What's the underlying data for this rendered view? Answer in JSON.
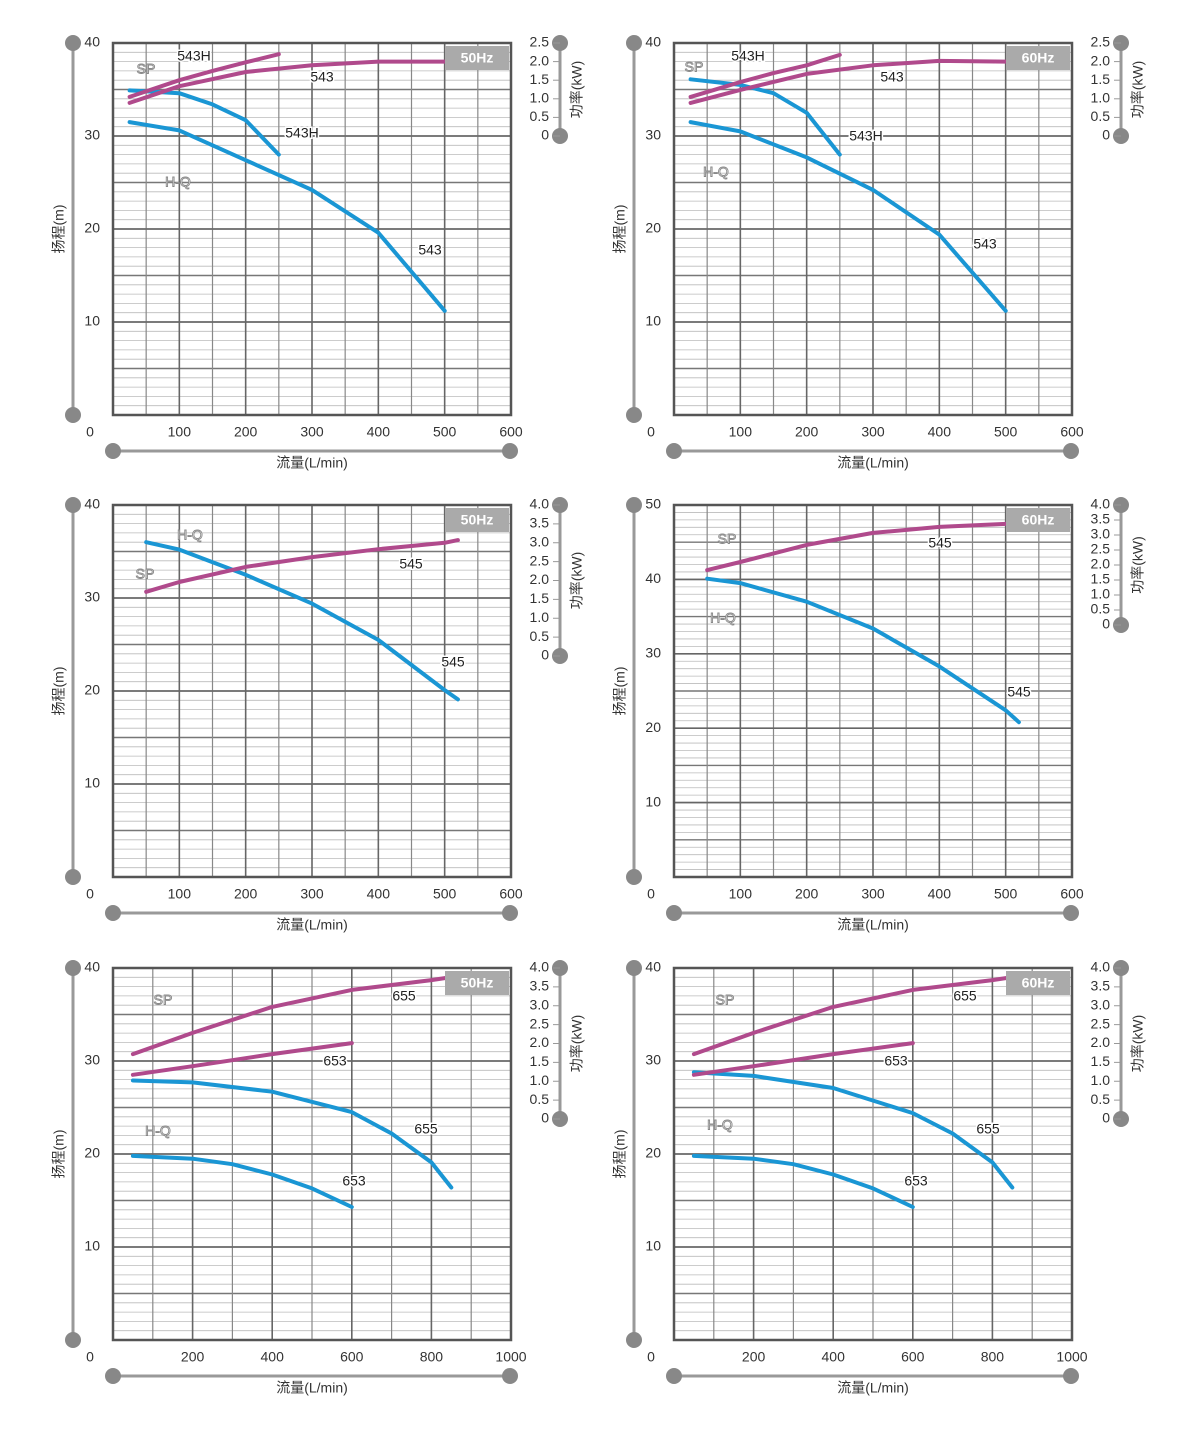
{
  "chart_data": [
    {
      "type": "line",
      "frequency": "50Hz",
      "xlabel": "流量(L/min)",
      "ylabel": "扬程(m)",
      "y2label": "功率(kW)",
      "head_label": "H-Q",
      "power_label": "SP",
      "xlim": [
        0,
        600
      ],
      "xticks": [
        0,
        100,
        200,
        300,
        400,
        500,
        600
      ],
      "ylim": [
        0,
        40
      ],
      "yticks": [
        10,
        20,
        30,
        40
      ],
      "y2lim": [
        0,
        2.5
      ],
      "y2ticks": [
        0,
        0.5,
        {
          "value": 1,
          "label": "1.0"
        },
        1.5,
        {
          "value": 2,
          "label": "2.0"
        },
        2.5
      ],
      "grid": true,
      "series": [
        {
          "name": "543H",
          "color": "#1a96d4",
          "x": [
            25,
            100,
            150,
            200,
            250
          ],
          "values": [
            34.9,
            34.6,
            33.4,
            31.7,
            28
          ]
        },
        {
          "name": "543",
          "color": "#1a96d4",
          "x": [
            25,
            100,
            200,
            300,
            400,
            500
          ],
          "values": [
            31.5,
            30.6,
            27.4,
            24.2,
            19.6,
            11.2
          ]
        },
        {
          "name": "543H",
          "color": "#b04a8c",
          "axis": "y2",
          "x": [
            25,
            100,
            150,
            200,
            250
          ],
          "values": [
            1.05,
            1.5,
            1.75,
            1.98,
            2.2
          ]
        },
        {
          "name": "543",
          "color": "#b04a8c",
          "axis": "y2",
          "x": [
            25,
            100,
            200,
            300,
            400,
            500
          ],
          "values": [
            0.89,
            1.34,
            1.72,
            1.9,
            2.0,
            2.0
          ]
        }
      ]
    },
    {
      "type": "line",
      "frequency": "60Hz",
      "xlabel": "流量(L/min)",
      "ylabel": "扬程(m)",
      "y2label": "功率(kW)",
      "head_label": "H-Q",
      "power_label": "SP",
      "xlim": [
        0,
        600
      ],
      "xticks": [
        0,
        100,
        200,
        300,
        400,
        500,
        600
      ],
      "ylim": [
        0,
        40
      ],
      "yticks": [
        10,
        20,
        30,
        40
      ],
      "y2lim": [
        0,
        2.5
      ],
      "y2ticks": [
        0,
        0.5,
        {
          "value": 1,
          "label": "1.0"
        },
        1.5,
        {
          "value": 2,
          "label": "2.0"
        },
        2.5
      ],
      "grid": true,
      "series": [
        {
          "name": "543H",
          "color": "#1a96d4",
          "x": [
            25,
            100,
            150,
            200,
            250
          ],
          "values": [
            36.1,
            35.5,
            34.6,
            32.5,
            28
          ]
        },
        {
          "name": "543",
          "color": "#1a96d4",
          "x": [
            25,
            100,
            200,
            300,
            400,
            500
          ],
          "values": [
            31.5,
            30.5,
            27.7,
            24.2,
            19.4,
            11.2
          ]
        },
        {
          "name": "543H",
          "color": "#b04a8c",
          "axis": "y2",
          "x": [
            25,
            100,
            150,
            200,
            250
          ],
          "values": [
            1.05,
            1.45,
            1.69,
            1.9,
            2.18
          ]
        },
        {
          "name": "543",
          "color": "#b04a8c",
          "axis": "y2",
          "x": [
            25,
            100,
            200,
            300,
            400,
            500
          ],
          "values": [
            0.89,
            1.24,
            1.67,
            1.9,
            2.02,
            2.0
          ]
        }
      ]
    },
    {
      "type": "line",
      "frequency": "50Hz",
      "xlabel": "流量(L/min)",
      "ylabel": "扬程(m)",
      "y2label": "功率(kW)",
      "head_label": "H-Q",
      "power_label": "SP",
      "xlim": [
        0,
        600
      ],
      "xticks": [
        0,
        100,
        200,
        300,
        400,
        500,
        600
      ],
      "ylim": [
        0,
        40
      ],
      "yticks": [
        10,
        20,
        30,
        40
      ],
      "y2lim": [
        0,
        4
      ],
      "y2ticks": [
        0,
        0.5,
        {
          "value": 1,
          "label": "1.0"
        },
        1.5,
        {
          "value": 2,
          "label": "2.0"
        },
        2.5,
        {
          "value": 3,
          "label": "3.0"
        },
        3.5,
        {
          "value": 4,
          "label": "4.0"
        }
      ],
      "grid": true,
      "series": [
        {
          "name": "545",
          "color": "#1a96d4",
          "x": [
            50,
            100,
            200,
            300,
            400,
            500,
            520
          ],
          "values": [
            36,
            35.2,
            32.5,
            29.4,
            25.5,
            20.1,
            19.1
          ]
        },
        {
          "name": "545",
          "color": "#b04a8c",
          "axis": "y2",
          "x": [
            50,
            100,
            200,
            300,
            400,
            500,
            520
          ],
          "values": [
            1.7,
            1.96,
            2.36,
            2.62,
            2.83,
            3.0,
            3.07
          ]
        }
      ]
    },
    {
      "type": "line",
      "frequency": "60Hz",
      "xlabel": "流量(L/min)",
      "ylabel": "扬程(m)",
      "y2label": "功率(kW)",
      "head_label": "H-Q",
      "power_label": "SP",
      "xlim": [
        0,
        600
      ],
      "xticks": [
        0,
        100,
        200,
        300,
        400,
        500,
        600
      ],
      "ylim": [
        0,
        50
      ],
      "yticks": [
        10,
        20,
        30,
        40,
        50
      ],
      "y2lim": [
        0,
        4
      ],
      "y2ticks": [
        0,
        0.5,
        {
          "value": 1,
          "label": "1.0"
        },
        1.5,
        {
          "value": 2,
          "label": "2.0"
        },
        2.5,
        {
          "value": 3,
          "label": "3.0"
        },
        3.5,
        {
          "value": 4,
          "label": "4.0"
        }
      ],
      "grid": true,
      "series": [
        {
          "name": "545",
          "color": "#1a96d4",
          "x": [
            50,
            100,
            200,
            300,
            400,
            500,
            520
          ],
          "values": [
            40.1,
            39.5,
            37,
            33.4,
            28.3,
            22.4,
            20.8
          ]
        },
        {
          "name": "545",
          "color": "#b04a8c",
          "axis": "y2",
          "x": [
            50,
            100,
            200,
            300,
            400,
            500,
            520
          ],
          "values": [
            1.83,
            2.1,
            2.67,
            3.07,
            3.27,
            3.37,
            3.38
          ]
        }
      ]
    },
    {
      "type": "line",
      "frequency": "50Hz",
      "xlabel": "流量(L/min)",
      "ylabel": "扬程(m)",
      "y2label": "功率(kW)",
      "head_label": "H-Q",
      "power_label": "SP",
      "xlim": [
        0,
        1000
      ],
      "xticks": [
        0,
        200,
        400,
        600,
        800,
        1000
      ],
      "ylim": [
        0,
        40
      ],
      "yticks": [
        10,
        20,
        30,
        40
      ],
      "y2lim": [
        0,
        4
      ],
      "y2ticks": [
        0,
        0.5,
        {
          "value": 1,
          "label": "1.0"
        },
        1.5,
        {
          "value": 2,
          "label": "2.0"
        },
        2.5,
        {
          "value": 3,
          "label": "3.0"
        },
        3.5,
        {
          "value": 4,
          "label": "4.0"
        }
      ],
      "grid": true,
      "series": [
        {
          "name": "655",
          "color": "#1a96d4",
          "x": [
            50,
            200,
            400,
            600,
            700,
            800,
            850
          ],
          "values": [
            27.9,
            27.7,
            26.7,
            24.5,
            22.2,
            19.1,
            16.4
          ]
        },
        {
          "name": "653",
          "color": "#1a96d4",
          "x": [
            50,
            200,
            300,
            400,
            500,
            600
          ],
          "values": [
            19.8,
            19.5,
            18.9,
            17.8,
            16.3,
            14.3
          ]
        },
        {
          "name": "655",
          "color": "#b04a8c",
          "axis": "y2",
          "x": [
            50,
            200,
            400,
            600,
            800,
            850
          ],
          "values": [
            1.72,
            2.28,
            2.97,
            3.42,
            3.68,
            3.76
          ]
        },
        {
          "name": "653",
          "color": "#b04a8c",
          "axis": "y2",
          "x": [
            50,
            200,
            400,
            600
          ],
          "values": [
            1.17,
            1.4,
            1.72,
            2.01
          ]
        }
      ]
    },
    {
      "type": "line",
      "frequency": "60Hz",
      "xlabel": "流量(L/min)",
      "ylabel": "扬程(m)",
      "y2label": "功率(kW)",
      "head_label": "H-Q",
      "power_label": "SP",
      "xlim": [
        0,
        1000
      ],
      "xticks": [
        0,
        200,
        400,
        600,
        800,
        1000
      ],
      "ylim": [
        0,
        40
      ],
      "yticks": [
        10,
        20,
        30,
        40
      ],
      "y2lim": [
        0,
        4
      ],
      "y2ticks": [
        0,
        0.5,
        {
          "value": 1,
          "label": "1.0"
        },
        1.5,
        {
          "value": 2,
          "label": "2.0"
        },
        2.5,
        {
          "value": 3,
          "label": "3.0"
        },
        3.5,
        {
          "value": 4,
          "label": "4.0"
        }
      ],
      "grid": true,
      "series": [
        {
          "name": "655",
          "color": "#1a96d4",
          "x": [
            50,
            200,
            400,
            600,
            700,
            800,
            850
          ],
          "values": [
            28.8,
            28.4,
            27.1,
            24.4,
            22.2,
            19.1,
            16.4
          ]
        },
        {
          "name": "653",
          "color": "#1a96d4",
          "x": [
            50,
            200,
            300,
            400,
            500,
            600
          ],
          "values": [
            19.8,
            19.5,
            18.9,
            17.8,
            16.3,
            14.3
          ]
        },
        {
          "name": "655",
          "color": "#b04a8c",
          "axis": "y2",
          "x": [
            50,
            200,
            400,
            600,
            800,
            850
          ],
          "values": [
            1.72,
            2.28,
            2.97,
            3.42,
            3.68,
            3.76
          ]
        },
        {
          "name": "653",
          "color": "#b04a8c",
          "axis": "y2",
          "x": [
            50,
            200,
            400,
            600
          ],
          "values": [
            1.17,
            1.4,
            1.72,
            2.01
          ]
        }
      ]
    }
  ]
}
